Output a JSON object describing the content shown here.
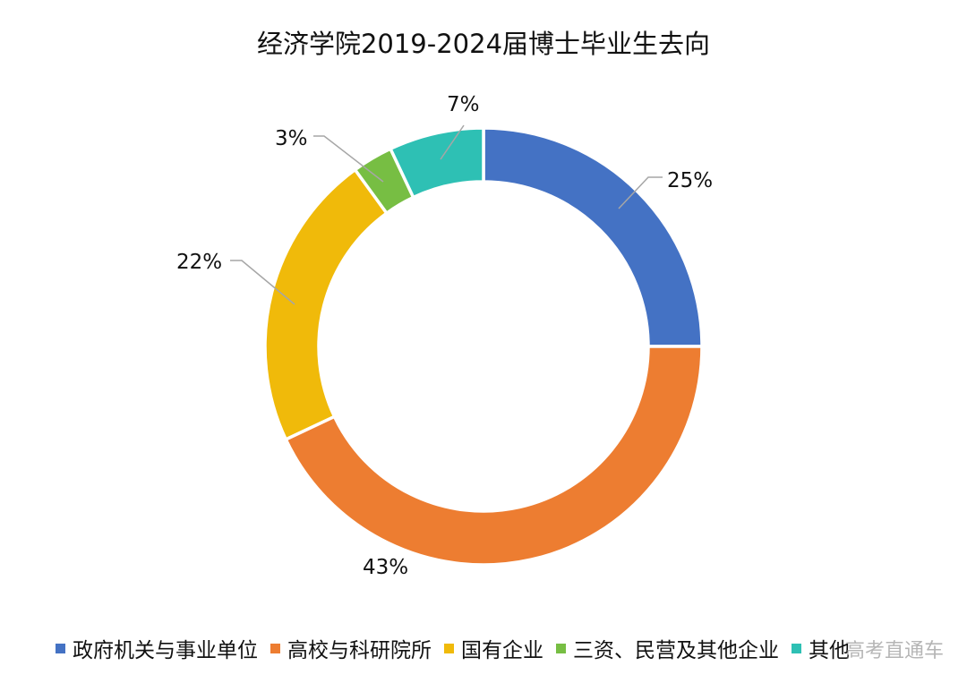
{
  "title": "经济学院2019-2024届博士毕业生去向",
  "watermark": "高考直通车",
  "legend": [
    {
      "label": "政府机关与事业单位",
      "color": "#4472C4"
    },
    {
      "label": "高校与科研院所",
      "color": "#ED7D31"
    },
    {
      "label": "国有企业",
      "color": "#F0BA0A"
    },
    {
      "label": "三资、民营及其他企业",
      "color": "#77BE43"
    },
    {
      "label": "其他",
      "color": "#2EC0B4"
    }
  ],
  "labels": {
    "gov": "25%",
    "univ": "43%",
    "soe": "22%",
    "private": "3%",
    "other": "7%"
  },
  "chart_data": {
    "type": "pie",
    "subtype": "donut",
    "title": "经济学院2019-2024届博士毕业生去向",
    "categories": [
      "政府机关与事业单位",
      "高校与科研院所",
      "国有企业",
      "三资、民营及其他企业",
      "其他"
    ],
    "values": [
      25,
      43,
      22,
      3,
      7
    ],
    "unit": "%",
    "colors": [
      "#4472C4",
      "#ED7D31",
      "#F0BA0A",
      "#77BE43",
      "#2EC0B4"
    ],
    "start_angle": "12 o'clock, clockwise",
    "legend_position": "bottom",
    "data_labels": [
      "25%",
      "43%",
      "22%",
      "3%",
      "7%"
    ]
  }
}
